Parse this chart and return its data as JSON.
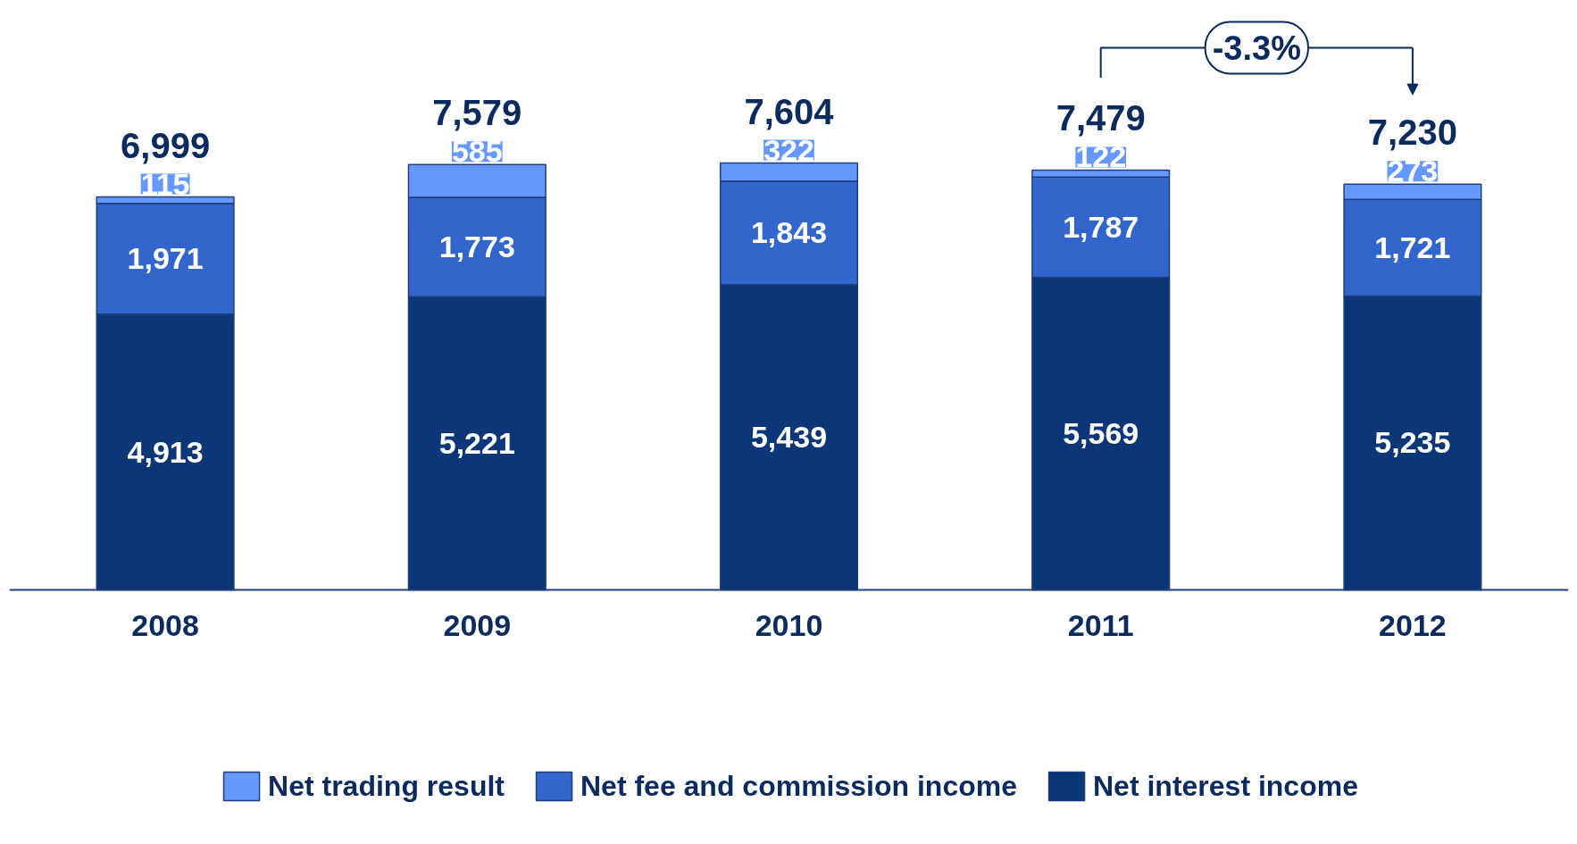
{
  "chart_data": {
    "type": "bar",
    "stacked": true,
    "categories": [
      "2008",
      "2009",
      "2010",
      "2011",
      "2012"
    ],
    "series": [
      {
        "name": "Net interest income",
        "color": "#0b3678",
        "values": [
          4913,
          5221,
          5439,
          5569,
          5235
        ],
        "value_labels": [
          "4,913",
          "5,221",
          "5,439",
          "5,569",
          "5,235"
        ]
      },
      {
        "name": "Net fee and commission income",
        "color": "#3366cc",
        "values": [
          1971,
          1773,
          1843,
          1787,
          1721
        ],
        "value_labels": [
          "1,971",
          "1,773",
          "1,843",
          "1,787",
          "1,721"
        ]
      },
      {
        "name": "Net trading result",
        "color": "#6699ff",
        "values": [
          115,
          585,
          322,
          122,
          273
        ],
        "value_labels": [
          "115",
          "585",
          "322",
          "122",
          "273"
        ]
      }
    ],
    "totals": [
      "6,999",
      "7,579",
      "7,604",
      "7,479",
      "7,230"
    ],
    "annotations": [
      "-3.3%"
    ],
    "legend": "bottom",
    "grid": false
  }
}
